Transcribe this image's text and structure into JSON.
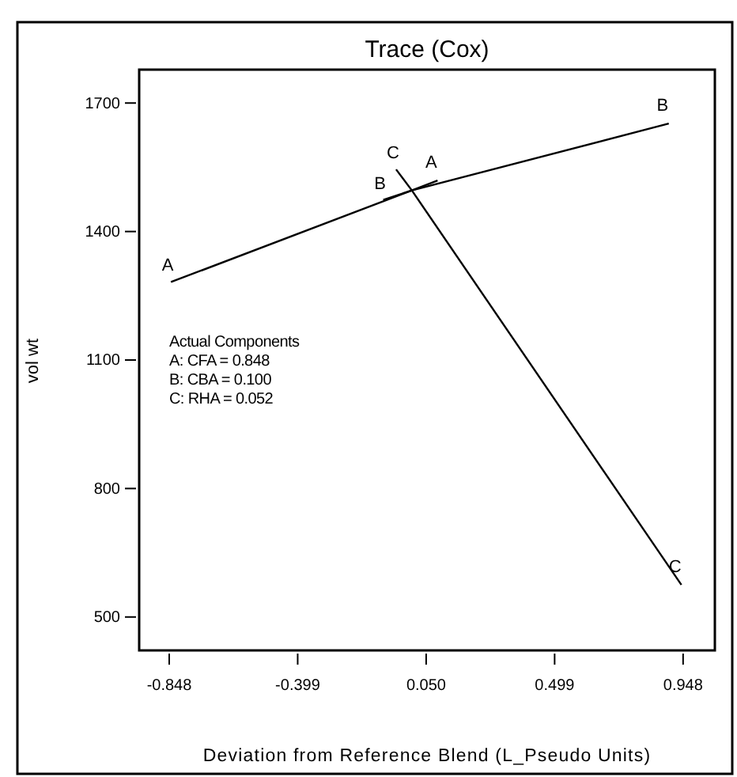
{
  "chart_data": {
    "type": "line",
    "title": "Trace (Cox)",
    "xlabel": "Deviation from Reference Blend (L_Pseudo Units)",
    "ylabel": "vol wt",
    "series": [
      {
        "name": "A",
        "color": "#000000",
        "x": [
          -0.842,
          0,
          0.09
        ],
        "values": [
          1282,
          1496,
          1519
        ]
      },
      {
        "name": "B",
        "color": "#000000",
        "x": [
          -0.1,
          0,
          0.898
        ],
        "values": [
          1474,
          1496,
          1652
        ]
      },
      {
        "name": "C",
        "color": "#000000",
        "x": [
          -0.055,
          0,
          0.942
        ],
        "values": [
          1545,
          1496,
          575
        ]
      }
    ],
    "xlim": [
      -0.953,
      1.059
    ],
    "ylim": [
      422,
      1778
    ],
    "xticks": [
      {
        "value": -0.848,
        "label": "-0.848"
      },
      {
        "value": -0.399,
        "label": "-0.399"
      },
      {
        "value": 0.05,
        "label": "0.050"
      },
      {
        "value": 0.499,
        "label": "0.499"
      },
      {
        "value": 0.948,
        "label": "0.948"
      }
    ],
    "yticks": [
      500,
      800,
      1100,
      1400,
      1700
    ],
    "grid": false,
    "marker": "none",
    "line_style": "solid",
    "annotations": [
      "Actual Components",
      "A: CFA = 0.848",
      "B: CBA = 0.100",
      "C: RHA = 0.052"
    ]
  }
}
